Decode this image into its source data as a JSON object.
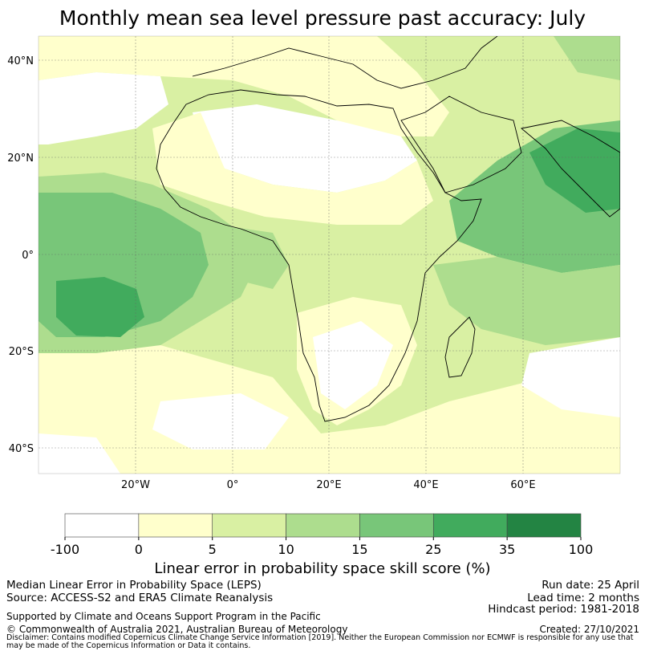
{
  "title": "Monthly mean sea level pressure past accuracy: July",
  "map": {
    "lat_labels": [
      "40°N",
      "20°N",
      "0°",
      "20°S",
      "40°S"
    ],
    "lon_labels": [
      "20°W",
      "0°",
      "20°E",
      "40°E",
      "60°E"
    ],
    "extent": {
      "lon": [
        -40,
        80
      ],
      "lat": [
        -45,
        45
      ]
    },
    "gridlines": true
  },
  "colorbar": {
    "tick_labels": [
      "-100",
      "0",
      "5",
      "10",
      "15",
      "25",
      "35",
      "100"
    ],
    "colors": [
      "#ffffff",
      "#ffffcc",
      "#d9f0a3",
      "#addd8e",
      "#78c679",
      "#41ab5d",
      "#238443"
    ],
    "label": "Linear error in probability space skill score (%)"
  },
  "footer": {
    "left_line1": "Median Linear Error in Probability Space (LEPS)",
    "left_line2": "Source: ACCESS-S2 and ERA5 Climate Reanalysis",
    "support": "Supported by Climate and Oceans Support Program in the Pacific",
    "copyright": "© Commonwealth of Australia 2021, Australian Bureau of Meteorology",
    "run_date": "Run date: 25 April",
    "lead_time": "Lead time: 2 months",
    "hindcast": "Hindcast period: 1981-2018",
    "created": "Created: 27/10/2021",
    "disclaimer": "Disclaimer: Contains modified Copernicus Climate Change Service Information [2019]. Neither the European Commission nor ECMWF is responsible for any use that may be made of the Copernicus Information or Data it contains."
  }
}
